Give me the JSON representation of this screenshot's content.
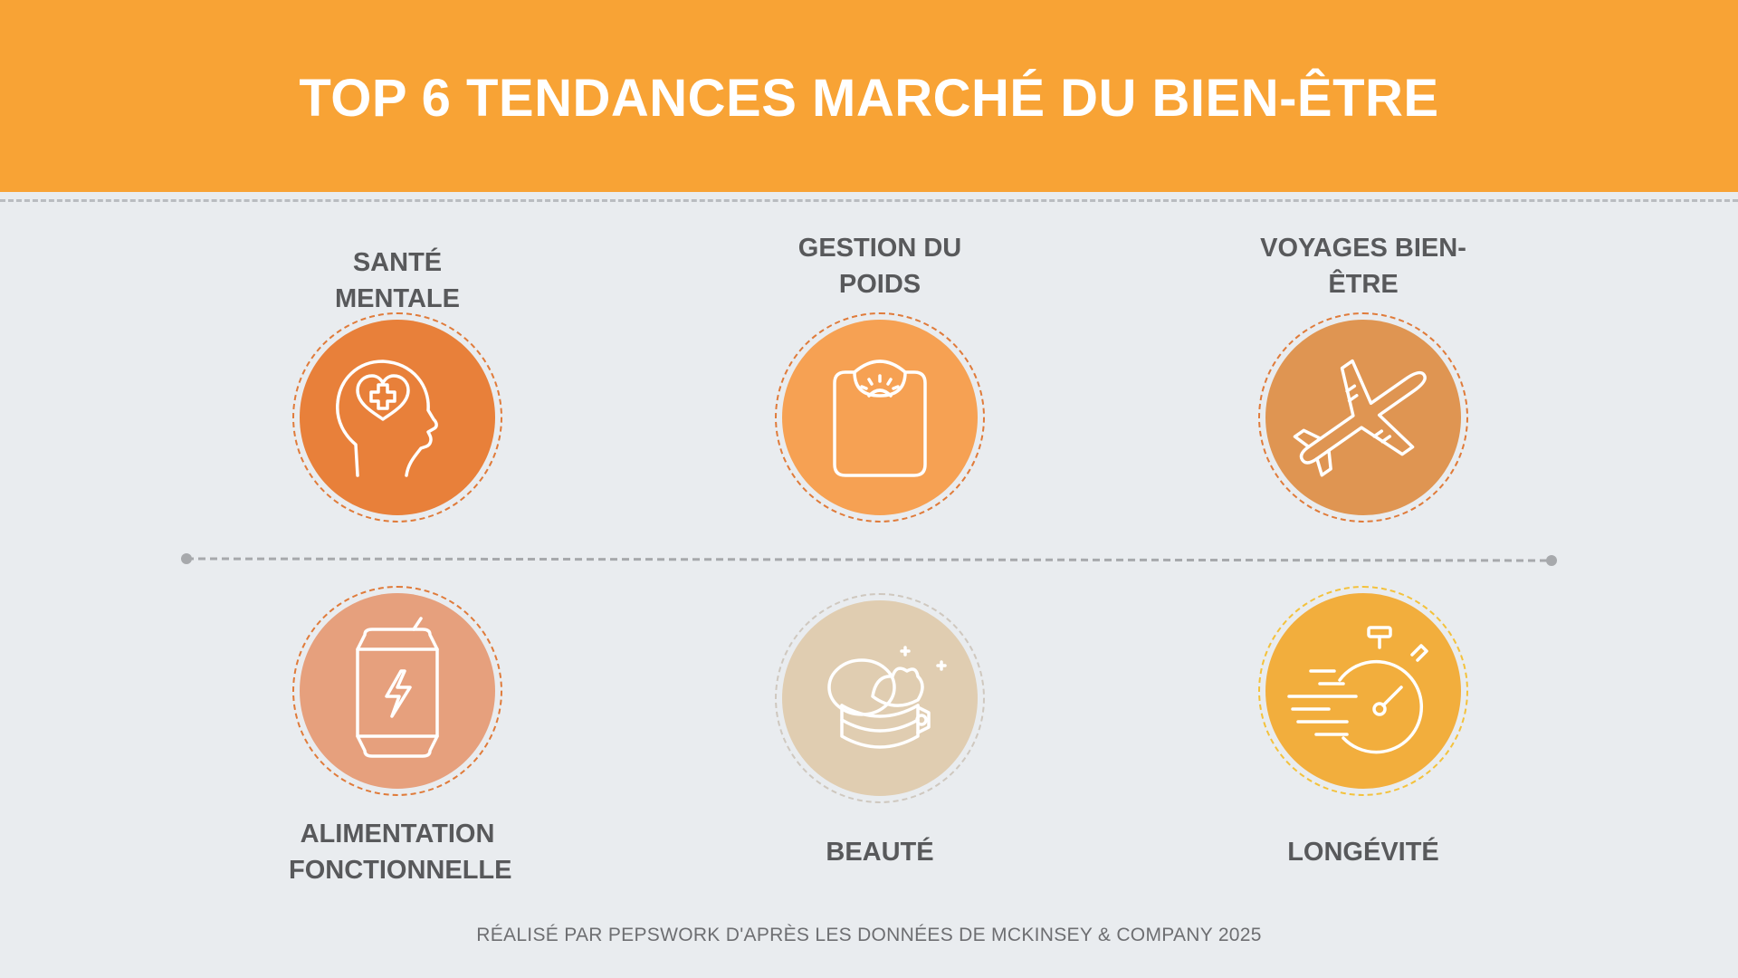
{
  "title": "TOP 6 TENDANCES MARCHÉ DU BIEN-ÊTRE",
  "colors": {
    "header": "#f8a335",
    "background": "#e9ecef",
    "text": "#58595b",
    "sante_mentale": "#e8803a",
    "gestion_poids": "#f6a153",
    "voyages": "#df9552",
    "alimentation": "#e6a07d",
    "beaute": "#e0cdb1",
    "longevite": "#f2ae3d"
  },
  "trends": {
    "sante_mentale": {
      "label": "SANTÉ MENTALE",
      "icon": "mental-health-head-heart-icon"
    },
    "gestion_poids": {
      "label": "GESTION DU POIDS",
      "icon": "weighing-scale-icon"
    },
    "voyages": {
      "label": "VOYAGES BIEN-ÊTRE",
      "icon": "airplane-icon"
    },
    "alimentation": {
      "label": "ALIMENTATION FONCTIONNELLE",
      "icon": "energy-drink-can-icon"
    },
    "beaute": {
      "label": "BEAUTÉ",
      "icon": "cream-jar-icon"
    },
    "longevite": {
      "label": "LONGÉVITÉ",
      "icon": "fast-stopwatch-icon"
    }
  },
  "footer": "RÉALISÉ PAR PEPSWORK D'APRÈS LES DONNÉES DE MCKINSEY & COMPANY 2025"
}
